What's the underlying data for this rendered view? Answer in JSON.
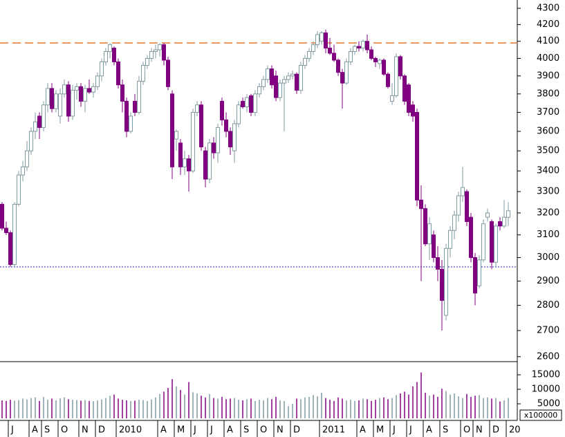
{
  "chart_data": {
    "type": "candlestick",
    "log_scale": true,
    "up_color": "#ffffff",
    "up_stroke": "#7f9aa0",
    "down_color": "#800080",
    "categories": [
      null,
      null,
      "J",
      null,
      null,
      null,
      null,
      "A",
      null,
      null,
      "S",
      null,
      null,
      null,
      "O",
      null,
      null,
      null,
      null,
      "N",
      null,
      null,
      null,
      "D",
      null,
      null,
      null,
      null,
      "2010",
      null,
      null,
      null,
      null,
      null,
      null,
      null,
      null,
      null,
      "A",
      null,
      null,
      null,
      "M",
      null,
      null,
      null,
      "J",
      null,
      null,
      null,
      "J",
      null,
      null,
      null,
      "A",
      null,
      null,
      null,
      "S",
      null,
      null,
      null,
      "O",
      null,
      null,
      null,
      "N",
      null,
      null,
      null,
      "D",
      null,
      null,
      null,
      null,
      null,
      null,
      "2011",
      null,
      null,
      null,
      null,
      null,
      null,
      null,
      null,
      "A",
      null,
      null,
      null,
      "M",
      null,
      null,
      null,
      "J",
      null,
      null,
      null,
      "J",
      null,
      null,
      null,
      "A",
      null,
      null,
      null,
      "S",
      null,
      null,
      null,
      null,
      "O",
      null,
      null,
      "N",
      null,
      null,
      null,
      "D",
      null,
      null,
      null,
      "20"
    ],
    "open": [
      3240,
      3130,
      3110,
      2970,
      3240,
      3380,
      3420,
      3500,
      3600,
      3680,
      3620,
      3740,
      3830,
      3720,
      3680,
      3800,
      3850,
      3680,
      3820,
      3840,
      3760,
      3830,
      3810,
      3840,
      3900,
      3980,
      4040,
      4060,
      3980,
      3850,
      3760,
      3600,
      3760,
      3700,
      3870,
      3960,
      4000,
      4040,
      4050,
      4080,
      3990,
      3800,
      3560,
      3540,
      3420,
      3460,
      3400,
      3700,
      3740,
      3500,
      3360,
      3540,
      3490,
      3760,
      3660,
      3600,
      3500,
      3640,
      3760,
      3730,
      3790,
      3700,
      3800,
      3840,
      3880,
      3940,
      3900,
      3780,
      3860,
      3880,
      3900,
      3910,
      3820,
      3960,
      4000,
      4040,
      4080,
      4100,
      4150,
      4060,
      4030,
      3990,
      3920,
      3860,
      3980,
      4040,
      4070,
      4060,
      4100,
      4050,
      4000,
      3970,
      3990,
      3910,
      3760,
      3790,
      4010,
      3900,
      3850,
      3740,
      3700,
      3260,
      3220,
      3060,
      3100,
      3000,
      2950,
      2760,
      3040,
      3120,
      3190,
      3280,
      3300,
      3180,
      3000,
      2880,
      2990,
      3180,
      3160,
      2980,
      3160,
      3140,
      3180
    ],
    "high": [
      3250,
      3160,
      3120,
      3250,
      3400,
      3450,
      3550,
      3620,
      3700,
      3700,
      3760,
      3860,
      3860,
      3820,
      3830,
      3880,
      3870,
      3850,
      3860,
      3860,
      3850,
      3880,
      3860,
      3920,
      4000,
      4060,
      4090,
      4070,
      4000,
      3880,
      3780,
      3700,
      3800,
      3900,
      3980,
      4020,
      4060,
      4080,
      4090,
      4090,
      4010,
      3820,
      3610,
      3560,
      3500,
      3480,
      3720,
      3760,
      3760,
      3520,
      3560,
      3570,
      3640,
      3780,
      3700,
      3620,
      3660,
      3760,
      3780,
      3800,
      3800,
      3820,
      3860,
      3900,
      3960,
      3960,
      3930,
      3880,
      3900,
      3920,
      3930,
      3920,
      3980,
      4020,
      4060,
      4100,
      4160,
      4160,
      4170,
      4120,
      4080,
      4000,
      3940,
      4000,
      4060,
      4080,
      4100,
      4110,
      4140,
      4070,
      4010,
      4000,
      4000,
      3920,
      3860,
      4030,
      4020,
      3910,
      3860,
      3760,
      3720,
      3330,
      3240,
      3180,
      3120,
      3050,
      2990,
      3060,
      3140,
      3210,
      3300,
      3420,
      3310,
      3200,
      3020,
      3010,
      3170,
      3220,
      3170,
      3150,
      3180,
      3260,
      3250
    ],
    "low": [
      3120,
      3100,
      2960,
      2960,
      3230,
      3350,
      3400,
      3480,
      3560,
      3560,
      3600,
      3700,
      3700,
      3700,
      3640,
      3780,
      3650,
      3660,
      3770,
      3730,
      3700,
      3800,
      3780,
      3820,
      3870,
      3960,
      4000,
      3960,
      3830,
      3700,
      3570,
      3590,
      3680,
      3690,
      3850,
      3940,
      3980,
      4000,
      4010,
      3960,
      3820,
      3360,
      3500,
      3380,
      3380,
      3300,
      3390,
      3680,
      3500,
      3320,
      3340,
      3460,
      3440,
      3630,
      3570,
      3480,
      3440,
      3620,
      3720,
      3700,
      3680,
      3680,
      3780,
      3820,
      3860,
      3830,
      3760,
      3760,
      3600,
      3860,
      3880,
      3800,
      3800,
      3940,
      3980,
      4020,
      4060,
      4080,
      4030,
      4020,
      3980,
      3900,
      3720,
      3850,
      3960,
      4020,
      4040,
      4040,
      4030,
      3990,
      3950,
      3940,
      3900,
      3830,
      3740,
      3780,
      3880,
      3740,
      3680,
      3650,
      3230,
      2900,
      3050,
      2990,
      2980,
      2900,
      2700,
      2740,
      3000,
      3080,
      3160,
      3250,
      3140,
      2980,
      2800,
      2870,
      2980,
      3160,
      2950,
      2960,
      3120,
      3130,
      3140
    ],
    "close": [
      3130,
      3110,
      2970,
      3240,
      3380,
      3420,
      3500,
      3600,
      3650,
      3620,
      3740,
      3830,
      3720,
      3800,
      3800,
      3850,
      3680,
      3820,
      3840,
      3760,
      3830,
      3810,
      3840,
      3900,
      3980,
      4040,
      4080,
      3980,
      3850,
      3760,
      3600,
      3680,
      3700,
      3870,
      3960,
      4000,
      4040,
      4050,
      4080,
      3990,
      3840,
      3420,
      3600,
      3420,
      3460,
      3400,
      3700,
      3740,
      3520,
      3360,
      3540,
      3490,
      3620,
      3660,
      3600,
      3520,
      3640,
      3740,
      3730,
      3780,
      3700,
      3800,
      3840,
      3880,
      3940,
      3850,
      3780,
      3860,
      3880,
      3900,
      3910,
      3820,
      3960,
      4000,
      4040,
      4080,
      4140,
      4150,
      4060,
      4030,
      3990,
      3920,
      3860,
      3980,
      4040,
      4070,
      4060,
      4100,
      4050,
      4000,
      3980,
      3990,
      3910,
      3840,
      3790,
      4010,
      3900,
      3760,
      3700,
      3680,
      3260,
      3220,
      3060,
      3150,
      3000,
      2950,
      2820,
      3040,
      3120,
      3190,
      3280,
      3320,
      3160,
      3000,
      2850,
      2990,
      3150,
      3200,
      2980,
      3140,
      3140,
      3180,
      3210
    ],
    "volume": [
      6200,
      6000,
      6400,
      6100,
      6300,
      6800,
      6500,
      7000,
      7200,
      6000,
      7400,
      6400,
      6800,
      6200,
      6900,
      7200,
      6600,
      6400,
      6300,
      6100,
      6300,
      6000,
      5900,
      6200,
      6500,
      7000,
      7800,
      8200,
      6800,
      6400,
      6200,
      6000,
      6100,
      6400,
      6300,
      6000,
      6500,
      7200,
      8400,
      9200,
      10500,
      13500,
      11000,
      9800,
      8200,
      12500,
      9000,
      8600,
      7800,
      7200,
      8400,
      7000,
      6800,
      7400,
      6600,
      6800,
      7000,
      6400,
      6200,
      6600,
      6800,
      6000,
      6400,
      6200,
      7000,
      6600,
      7400,
      6200,
      6000,
      4200,
      5000,
      6800,
      6600,
      7200,
      7400,
      8000,
      7600,
      8800,
      7000,
      6400,
      6000,
      7200,
      6800,
      6200,
      6400,
      6000,
      6200,
      6800,
      6600,
      6000,
      6400,
      7000,
      7200,
      6600,
      7000,
      8000,
      8600,
      9200,
      8200,
      11000,
      12500,
      15800,
      8800,
      7800,
      8200,
      7400,
      10200,
      9400,
      8200,
      8600,
      7600,
      7000,
      8400,
      7400,
      7800,
      8000,
      7000,
      7200,
      6800,
      7000,
      5800,
      6200,
      7000
    ],
    "ylim": [
      2584,
      4352
    ],
    "yticks": [
      2600,
      2700,
      2800,
      2900,
      3000,
      3100,
      3200,
      3300,
      3400,
      3500,
      3600,
      3700,
      3800,
      3900,
      4000,
      4100,
      4200,
      4300
    ],
    "hlines": [
      {
        "value": 4090,
        "color": "#e8742c",
        "style": "dashed"
      },
      {
        "value": 2960,
        "color": "#2020c0",
        "style": "dotted"
      }
    ],
    "volume_ylim": [
      0,
      19300
    ],
    "volume_yticks": [
      5000,
      10000,
      15000
    ],
    "volume_unit": "x100000"
  }
}
